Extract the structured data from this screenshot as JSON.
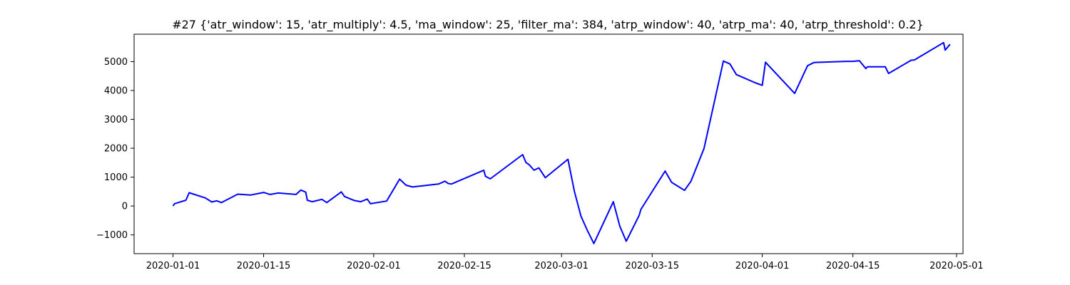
{
  "chart_data": {
    "type": "line",
    "title": "#27 {'atr_window': 15, 'atr_multiply': 4.5, 'ma_window': 25, 'filter_ma': 384, 'atrp_window': 40, 'atrp_ma': 40, 'atrp_threshold': 0.2}",
    "xlabel": "",
    "ylabel": "",
    "x_axis_type": "date",
    "xlim": [
      "2019-12-26",
      "2020-05-02"
    ],
    "ylim": [
      -1650,
      5950
    ],
    "grid": false,
    "line_color": "#0000ff",
    "x_ticks": [
      {
        "date": "2020-01-01",
        "label": "2020-01-01"
      },
      {
        "date": "2020-01-15",
        "label": "2020-01-15"
      },
      {
        "date": "2020-02-01",
        "label": "2020-02-01"
      },
      {
        "date": "2020-02-15",
        "label": "2020-02-15"
      },
      {
        "date": "2020-03-01",
        "label": "2020-03-01"
      },
      {
        "date": "2020-03-15",
        "label": "2020-03-15"
      },
      {
        "date": "2020-04-01",
        "label": "2020-04-01"
      },
      {
        "date": "2020-04-15",
        "label": "2020-04-15"
      },
      {
        "date": "2020-05-01",
        "label": "2020-05-01"
      }
    ],
    "y_ticks": [
      {
        "value": -1000,
        "label": "−1000"
      },
      {
        "value": 0,
        "label": "0"
      },
      {
        "value": 1000,
        "label": "1000"
      },
      {
        "value": 2000,
        "label": "2000"
      },
      {
        "value": 3000,
        "label": "3000"
      },
      {
        "value": 4000,
        "label": "4000"
      },
      {
        "value": 5000,
        "label": "5000"
      }
    ],
    "series": [
      {
        "points": [
          [
            "2020-01-01",
            0
          ],
          [
            "2020-01-01T06:00",
            80
          ],
          [
            "2020-01-03",
            200
          ],
          [
            "2020-01-03T12:00",
            460
          ],
          [
            "2020-01-06",
            280
          ],
          [
            "2020-01-07",
            140
          ],
          [
            "2020-01-07T18:00",
            180
          ],
          [
            "2020-01-08T12:00",
            120
          ],
          [
            "2020-01-11",
            410
          ],
          [
            "2020-01-13",
            380
          ],
          [
            "2020-01-15",
            470
          ],
          [
            "2020-01-16",
            400
          ],
          [
            "2020-01-17T06:00",
            450
          ],
          [
            "2020-01-20",
            400
          ],
          [
            "2020-01-20T18:00",
            550
          ],
          [
            "2020-01-21T12:00",
            480
          ],
          [
            "2020-01-21T18:00",
            200
          ],
          [
            "2020-01-22T12:00",
            150
          ],
          [
            "2020-01-24",
            230
          ],
          [
            "2020-01-24T18:00",
            120
          ],
          [
            "2020-01-27",
            490
          ],
          [
            "2020-01-27T12:00",
            330
          ],
          [
            "2020-01-29",
            190
          ],
          [
            "2020-01-30",
            150
          ],
          [
            "2020-01-31",
            240
          ],
          [
            "2020-01-31T12:00",
            80
          ],
          [
            "2020-02-03",
            170
          ],
          [
            "2020-02-05",
            930
          ],
          [
            "2020-02-06",
            720
          ],
          [
            "2020-02-07",
            660
          ],
          [
            "2020-02-11",
            760
          ],
          [
            "2020-02-12",
            860
          ],
          [
            "2020-02-12T12:00",
            780
          ],
          [
            "2020-02-13",
            760
          ],
          [
            "2020-02-18",
            1240
          ],
          [
            "2020-02-18T06:00",
            1030
          ],
          [
            "2020-02-19",
            940
          ],
          [
            "2020-02-24",
            1780
          ],
          [
            "2020-02-24T12:00",
            1510
          ],
          [
            "2020-02-25",
            1430
          ],
          [
            "2020-02-25T18:00",
            1240
          ],
          [
            "2020-02-26T12:00",
            1320
          ],
          [
            "2020-02-27T12:00",
            980
          ],
          [
            "2020-03-02",
            1620
          ],
          [
            "2020-03-02T12:00",
            1050
          ],
          [
            "2020-03-03",
            500
          ],
          [
            "2020-03-04",
            -350
          ],
          [
            "2020-03-05",
            -850
          ],
          [
            "2020-03-06",
            -1300
          ],
          [
            "2020-03-09",
            150
          ],
          [
            "2020-03-10",
            -700
          ],
          [
            "2020-03-11",
            -1220
          ],
          [
            "2020-03-13",
            -320
          ],
          [
            "2020-03-13T06:00",
            -120
          ],
          [
            "2020-03-17",
            1210
          ],
          [
            "2020-03-18",
            820
          ],
          [
            "2020-03-20",
            540
          ],
          [
            "2020-03-21",
            860
          ],
          [
            "2020-03-23",
            1990
          ],
          [
            "2020-03-26",
            5020
          ],
          [
            "2020-03-27",
            4920
          ],
          [
            "2020-03-28",
            4550
          ],
          [
            "2020-03-31",
            4260
          ],
          [
            "2020-04-01",
            4180
          ],
          [
            "2020-04-01T12:00",
            4980
          ],
          [
            "2020-04-06",
            3900
          ],
          [
            "2020-04-08",
            4860
          ],
          [
            "2020-04-09",
            4970
          ],
          [
            "2020-04-14",
            5010
          ],
          [
            "2020-04-15",
            5010
          ],
          [
            "2020-04-16",
            5030
          ],
          [
            "2020-04-17",
            4760
          ],
          [
            "2020-04-17T06:00",
            4820
          ],
          [
            "2020-04-20",
            4820
          ],
          [
            "2020-04-20T12:00",
            4590
          ],
          [
            "2020-04-24",
            5050
          ],
          [
            "2020-04-24T12:00",
            5060
          ],
          [
            "2020-04-29",
            5660
          ],
          [
            "2020-04-29T06:00",
            5400
          ],
          [
            "2020-04-30",
            5600
          ]
        ]
      }
    ]
  }
}
